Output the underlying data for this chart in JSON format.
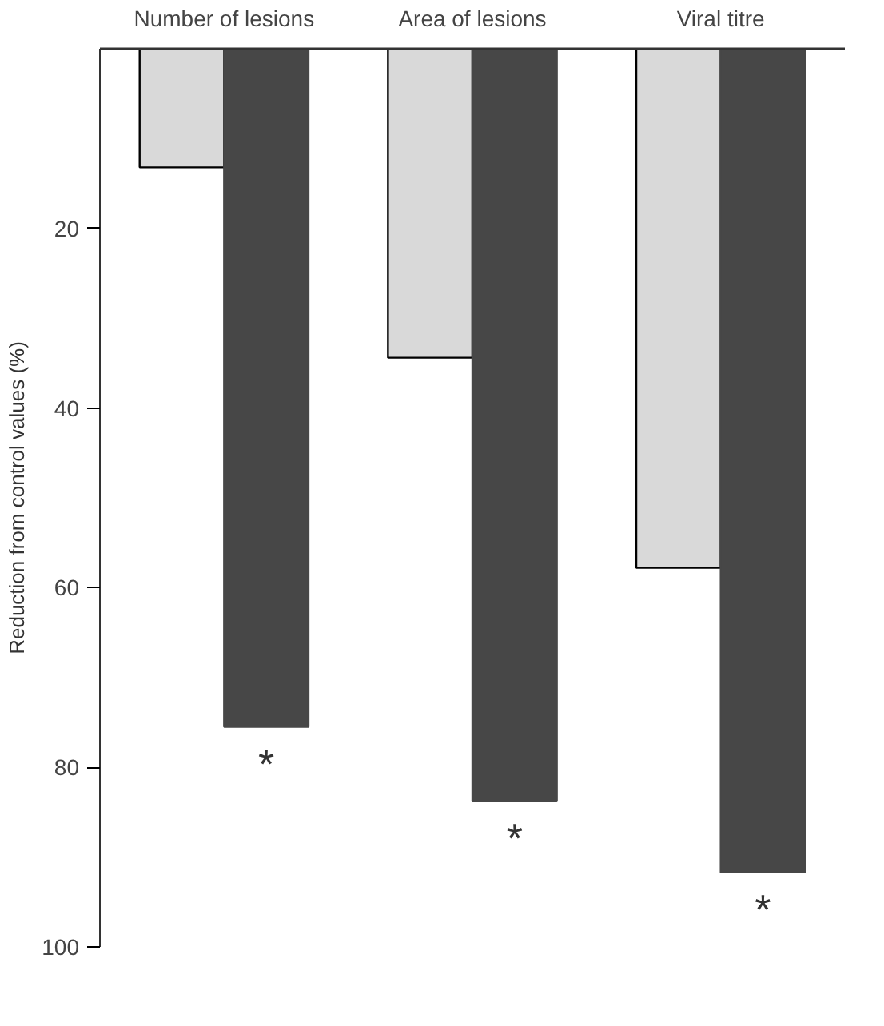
{
  "chart_data": {
    "type": "bar",
    "ylabel": "Reduction from control values (%)",
    "categories": [
      "Number of lesions",
      "Area of lesions",
      "Viral titre"
    ],
    "series": [
      {
        "color": "#d9d9d9",
        "values": [
          13.2,
          34.4,
          57.8
        ]
      },
      {
        "color": "#474747",
        "values": [
          75.5,
          83.8,
          91.7
        ]
      }
    ],
    "ylim": [
      100,
      0
    ],
    "yticks": [
      20,
      40,
      60,
      80,
      100
    ],
    "grid": false,
    "annotations": [
      "*",
      "*",
      "*"
    ]
  }
}
